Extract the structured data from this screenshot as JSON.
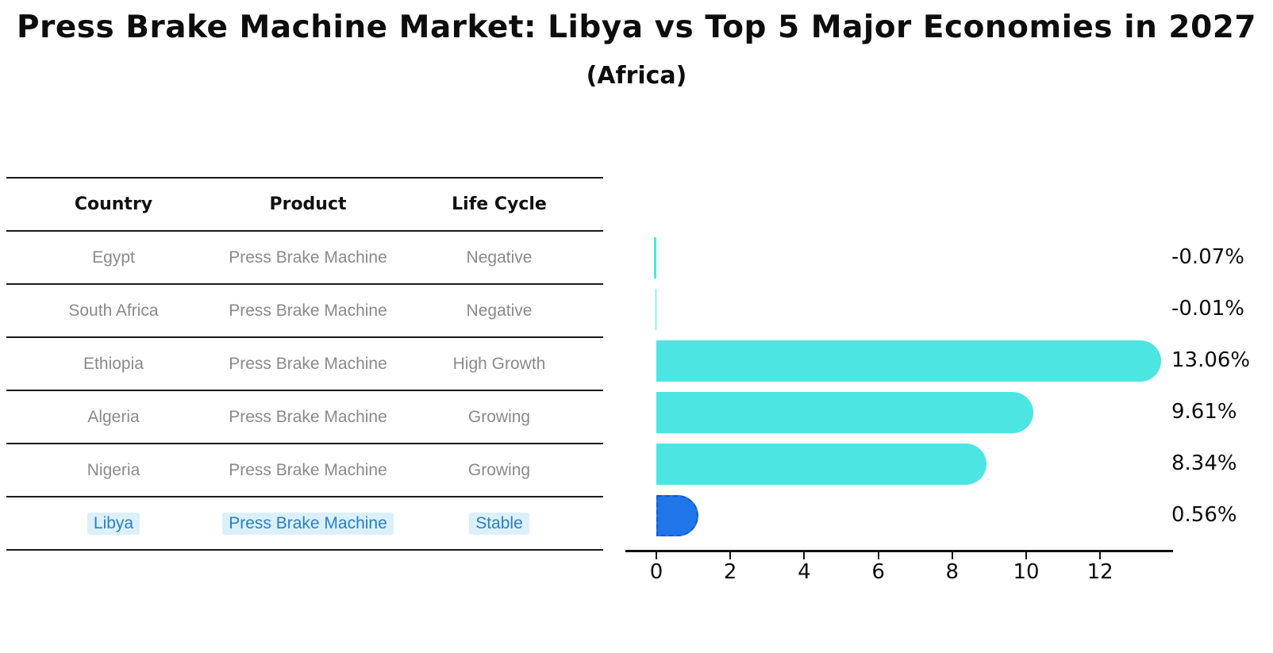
{
  "title": "Press Brake Machine Market: Libya vs Top 5 Major Economies in 2027",
  "subtitle": "(Africa)",
  "table": {
    "headers": [
      "Country",
      "Product",
      "Life Cycle"
    ],
    "rows": [
      {
        "country": "Egypt",
        "product": "Press Brake Machine",
        "life_cycle": "Negative",
        "highlighted": false
      },
      {
        "country": "South Africa",
        "product": "Press Brake Machine",
        "life_cycle": "Negative",
        "highlighted": false
      },
      {
        "country": "Ethiopia",
        "product": "Press Brake Machine",
        "life_cycle": "High Growth",
        "highlighted": false
      },
      {
        "country": "Algeria",
        "product": "Press Brake Machine",
        "life_cycle": "Growing",
        "highlighted": false
      },
      {
        "country": "Nigeria",
        "product": "Press Brake Machine",
        "life_cycle": "Growing",
        "highlighted": false
      },
      {
        "country": "Libya",
        "product": "Press Brake Machine",
        "life_cycle": "Stable",
        "highlighted": true
      }
    ]
  },
  "chart_data": {
    "type": "bar",
    "orientation": "horizontal",
    "categories": [
      "Egypt",
      "South Africa",
      "Ethiopia",
      "Algeria",
      "Nigeria",
      "Libya"
    ],
    "values": [
      -0.07,
      -0.01,
      13.06,
      9.61,
      8.34,
      0.56
    ],
    "value_labels": [
      "-0.07%",
      "-0.01%",
      "13.06%",
      "9.61%",
      "8.34%",
      "0.56%"
    ],
    "x_ticks": [
      "0",
      "2",
      "4",
      "6",
      "8",
      "10",
      "12"
    ],
    "xlim": [
      -0.8,
      14
    ],
    "grid": false,
    "legend": "none",
    "highlight_index": 5
  },
  "colors": {
    "background": "#ffffff",
    "bar_cyan": "#4DE5E1",
    "bar_blue": "#1E76E8",
    "bar_blue_dash": "#0E5BD8",
    "libya_text": "#2980C0",
    "libya_text_bg": "#DCF0FB",
    "table_text": "#8A8A8A",
    "heading_text": "#111111",
    "line": "#1A1A1A"
  }
}
